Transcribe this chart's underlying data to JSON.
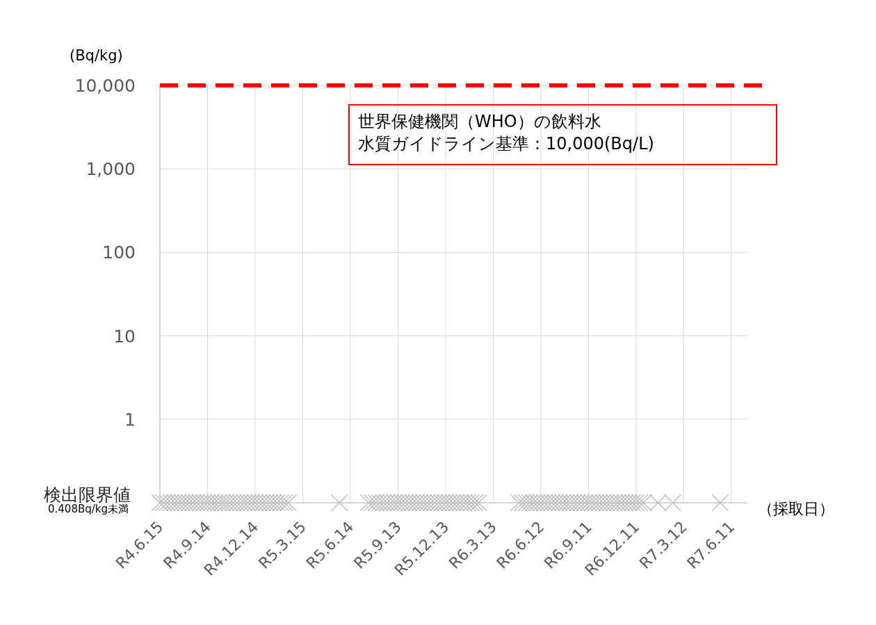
{
  "chart_data": {
    "type": "scatter",
    "ylabel": "(Bq/kg)",
    "xlabel": "（採取日）",
    "log": "y",
    "grid": true,
    "marker": "cross",
    "annotations": [
      "世界保健機関（WHO）の飲料水",
      "水質ガイドライン基準：10,000(Bq/L)"
    ],
    "ylim": [
      0.1,
      10000
    ],
    "yticks": [
      {
        "value": 0.1,
        "label": "検出限界値\n0.408Bq/kg未満"
      },
      {
        "value": 1,
        "label": "1"
      },
      {
        "value": 10,
        "label": "10"
      },
      {
        "value": 100,
        "label": "100"
      },
      {
        "value": 1000,
        "label": "1,000"
      },
      {
        "value": 10000,
        "label": "10,000"
      }
    ],
    "categories": [
      "R4.6.15",
      null,
      null,
      null,
      null,
      null,
      null,
      null,
      null,
      null,
      null,
      null,
      null,
      "R4.9.14",
      null,
      null,
      null,
      null,
      null,
      null,
      null,
      null,
      null,
      null,
      null,
      null,
      "R4.12.14",
      null,
      null,
      null,
      null,
      null,
      null,
      null,
      null,
      null,
      null,
      null,
      null,
      "R5.3.15",
      null,
      null,
      null,
      null,
      null,
      null,
      null,
      null,
      null,
      null,
      null,
      null,
      "R5.6.14",
      null,
      null,
      null,
      null,
      null,
      null,
      null,
      null,
      null,
      null,
      null,
      null,
      "R5.9.13",
      null,
      null,
      null,
      null,
      null,
      null,
      null,
      null,
      null,
      null,
      null,
      null,
      "R5.12.13",
      null,
      null,
      null,
      null,
      null,
      null,
      null,
      null,
      null,
      null,
      null,
      null,
      "R6.3.13",
      null,
      null,
      null,
      null,
      null,
      null,
      null,
      null,
      null,
      null,
      null,
      null,
      "R6.6.12",
      null,
      null,
      null,
      null,
      null,
      null,
      null,
      null,
      null,
      null,
      null,
      null,
      "R6.9.11",
      null,
      null,
      null,
      null,
      null,
      null,
      null,
      null,
      null,
      null,
      null,
      null,
      "R6.12.11",
      null,
      null,
      null,
      null,
      null,
      null,
      null,
      null,
      null,
      null,
      null,
      null,
      "R7.3.12",
      null,
      null,
      null,
      null,
      null,
      null,
      null,
      null,
      null,
      null,
      null,
      null,
      "R7.6.11",
      null,
      null,
      null,
      null
    ],
    "ref_lines": [
      {
        "axis": "y",
        "value": 10000,
        "color": "#ff0000",
        "line_style": "dashed"
      }
    ],
    "series": [
      {
        "color": "#bfbfbf",
        "values": [
          0.1,
          0.1,
          0.1,
          0.1,
          0.1,
          0.1,
          0.1,
          0.1,
          0.1,
          0.1,
          0.1,
          0.1,
          0.1,
          0.1,
          0.1,
          0.1,
          0.1,
          0.1,
          0.1,
          0.1,
          0.1,
          0.1,
          0.1,
          0.1,
          0.1,
          0.1,
          0.1,
          0.1,
          0.1,
          0.1,
          0.1,
          0.1,
          0.1,
          0.1,
          0.1,
          0.1,
          null,
          null,
          null,
          null,
          null,
          null,
          null,
          null,
          null,
          null,
          null,
          null,
          null,
          0.1,
          null,
          null,
          null,
          null,
          null,
          null,
          null,
          0.1,
          0.1,
          0.1,
          0.1,
          0.1,
          0.1,
          0.1,
          0.1,
          0.1,
          0.1,
          0.1,
          0.1,
          0.1,
          0.1,
          0.1,
          0.1,
          0.1,
          0.1,
          0.1,
          0.1,
          0.1,
          0.1,
          0.1,
          0.1,
          0.1,
          0.1,
          0.1,
          0.1,
          0.1,
          0.1,
          0.1,
          null,
          null,
          null,
          null,
          null,
          null,
          null,
          null,
          null,
          null,
          0.1,
          0.1,
          0.1,
          0.1,
          0.1,
          0.1,
          0.1,
          0.1,
          0.1,
          0.1,
          0.1,
          0.1,
          0.1,
          0.1,
          0.1,
          0.1,
          0.1,
          0.1,
          0.1,
          0.1,
          0.1,
          0.1,
          0.1,
          0.1,
          0.1,
          0.1,
          0.1,
          0.1,
          0.1,
          0.1,
          0.1,
          0.1,
          0.1,
          0.1,
          0.1,
          null,
          null,
          null,
          0.1,
          null,
          null,
          null,
          0.1,
          null,
          null,
          null,
          null,
          null,
          null,
          null,
          null,
          null,
          null,
          null,
          null,
          0.1,
          null,
          null,
          null,
          null,
          null,
          null,
          null
        ]
      }
    ]
  }
}
